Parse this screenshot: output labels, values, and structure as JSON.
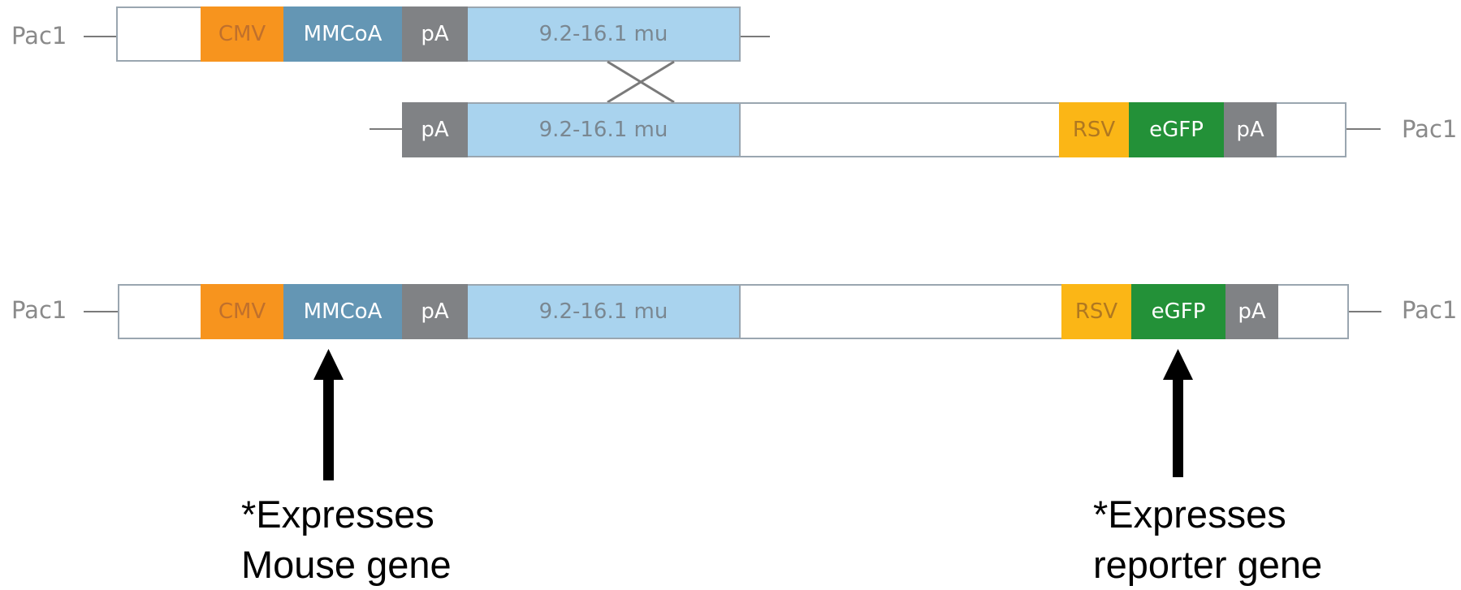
{
  "construct_a": {
    "left_label": "Pac1",
    "cmv": "CMV",
    "mmcoa": "MMCoA",
    "pa": "pA",
    "mu": "9.2-16.1 mu"
  },
  "construct_b": {
    "pa_left": "pA",
    "mu": "9.2-16.1 mu",
    "rsv": "RSV",
    "egfp": "eGFP",
    "pa_right": "pA",
    "right_label": "Pac1"
  },
  "recombinant": {
    "left_label": "Pac1",
    "cmv": "CMV",
    "mmcoa": "MMCoA",
    "pa_left": "pA",
    "mu": "9.2-16.1 mu",
    "rsv": "RSV",
    "egfp": "eGFP",
    "pa_right": "pA",
    "right_label": "Pac1"
  },
  "annotations": {
    "mouse_line1": "*Expresses",
    "mouse_line2": "Mouse gene",
    "reporter_line1": "*Expresses",
    "reporter_line2": "reporter gene"
  },
  "colors": {
    "cmv": "#f7941e",
    "mmcoa": "#6496b4",
    "pa": "#808285",
    "mu": "#a9d3ee",
    "rsv": "#fbb616",
    "egfp": "#239138"
  }
}
